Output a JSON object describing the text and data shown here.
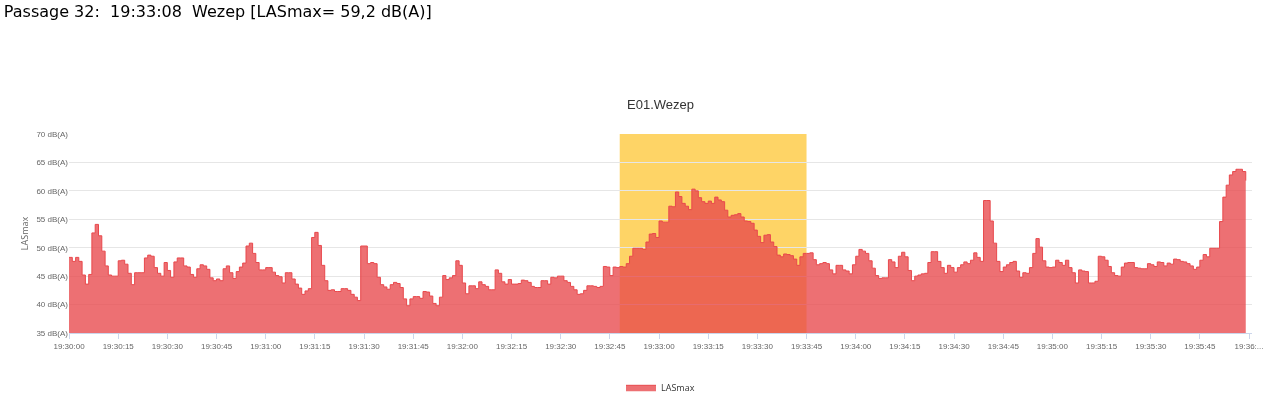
{
  "chart_data": {
    "type": "area",
    "title": "Passage 32:  19:33:08  Wezep [LASmax= 59,2 dB(A)]",
    "subtitle": "E01.Wezep",
    "ylabel": "LASmax",
    "x": [
      19.5,
      19.50028,
      19.50056,
      19.50083,
      19.50111,
      19.50139,
      19.50167,
      19.50194,
      19.50222,
      19.5025,
      19.50278,
      19.50306,
      19.50333,
      19.50361,
      19.50389,
      19.50417,
      19.50444,
      19.50472,
      19.505,
      19.50528,
      19.50556,
      19.50583,
      19.50611,
      19.50639,
      19.50667,
      19.50694,
      19.50722,
      19.5075,
      19.50778,
      19.50806,
      19.50833,
      19.50861,
      19.50889,
      19.50917,
      19.50944,
      19.50972,
      19.51,
      19.51028,
      19.51056,
      19.51083,
      19.51111,
      19.51139,
      19.51167,
      19.51194,
      19.51222,
      19.5125,
      19.51278,
      19.51306,
      19.51333,
      19.51361,
      19.51389,
      19.51417,
      19.51444,
      19.51472,
      19.515,
      19.51528,
      19.51556,
      19.51583,
      19.51611,
      19.51639,
      19.51667,
      19.51694,
      19.51722,
      19.5175,
      19.51778,
      19.51806,
      19.51833,
      19.51861,
      19.51889,
      19.51917,
      19.51944,
      19.51972,
      19.52,
      19.52028,
      19.52056,
      19.52083,
      19.52111,
      19.52139,
      19.52167,
      19.52194,
      19.52222,
      19.5225,
      19.52278,
      19.52306,
      19.52333,
      19.52361,
      19.52389,
      19.52417,
      19.52444,
      19.52472,
      19.525,
      19.52528,
      19.52556,
      19.52583,
      19.52611,
      19.52639,
      19.52667,
      19.52694,
      19.52722,
      19.5275,
      19.52778,
      19.52806,
      19.52833,
      19.52861,
      19.52889,
      19.52917,
      19.52944,
      19.52972,
      19.53,
      19.53028,
      19.53056,
      19.53083,
      19.53111,
      19.53139,
      19.53167,
      19.53194,
      19.53222,
      19.5325,
      19.53278,
      19.53306,
      19.53333,
      19.53361,
      19.53389,
      19.53417,
      19.53444,
      19.53472,
      19.535,
      19.53528,
      19.53556,
      19.53583,
      19.53611,
      19.53639,
      19.53667,
      19.53694,
      19.53722,
      19.5375,
      19.53778,
      19.53806,
      19.53833,
      19.53861,
      19.53889,
      19.53917,
      19.53944,
      19.53972,
      19.54,
      19.54028,
      19.54056,
      19.54083,
      19.54111,
      19.54139,
      19.54167,
      19.54194,
      19.54222,
      19.5425,
      19.54278,
      19.54306,
      19.54333,
      19.54361,
      19.54389,
      19.54417,
      19.54444,
      19.54472,
      19.545,
      19.54528,
      19.54556,
      19.54583,
      19.54611,
      19.54639,
      19.54667,
      19.54694,
      19.54722,
      19.5475,
      19.54778,
      19.54806,
      19.54833,
      19.54861,
      19.54889,
      19.54917,
      19.54944,
      19.54972,
      19.55,
      19.55028,
      19.55056,
      19.55083,
      19.55111,
      19.55139,
      19.55167,
      19.55194,
      19.55222,
      19.5525,
      19.55278,
      19.55306,
      19.55333,
      19.55361,
      19.55389,
      19.55417,
      19.55444,
      19.55472,
      19.555,
      19.55528,
      19.55556,
      19.55583,
      19.55611,
      19.55639,
      19.55667,
      19.55694,
      19.55722,
      19.5575,
      19.55778,
      19.55806,
      19.55833,
      19.55861,
      19.55889,
      19.55917,
      19.55944,
      19.55972,
      19.56,
      19.56028,
      19.56056,
      19.56083,
      19.56111,
      19.56139,
      19.56167,
      19.56194,
      19.56222,
      19.5625,
      19.56278,
      19.56306,
      19.56333,
      19.56361,
      19.56389,
      19.56417,
      19.56444,
      19.56472,
      19.565,
      19.56528,
      19.56556,
      19.56583,
      19.56611,
      19.56639,
      19.56667,
      19.56694,
      19.56722,
      19.5675,
      19.56778,
      19.56806,
      19.56833,
      19.56861,
      19.56889,
      19.56917,
      19.56944,
      19.56972,
      19.57,
      19.57028,
      19.57056,
      19.57083,
      19.57111,
      19.57139,
      19.57167,
      19.57194,
      19.57222,
      19.5725,
      19.57278,
      19.57306,
      19.57333,
      19.57361,
      19.57389,
      19.57417,
      19.57444,
      19.57472,
      19.575,
      19.57528,
      19.57556,
      19.57583,
      19.57611,
      19.57639,
      19.57667,
      19.57694,
      19.57722,
      19.5775,
      19.57778,
      19.57806,
      19.57833,
      19.57861,
      19.57889,
      19.57917,
      19.57944,
      19.57972,
      19.58,
      19.58028,
      19.58056,
      19.58083,
      19.58111,
      19.58139,
      19.58167,
      19.58194,
      19.58222,
      19.5825,
      19.58278,
      19.58306,
      19.58333,
      19.58361,
      19.58389,
      19.58417,
      19.58444,
      19.58472,
      19.585,
      19.58528,
      19.58556,
      19.58583,
      19.58611,
      19.58639,
      19.58667,
      19.58694,
      19.58722,
      19.5875,
      19.58778,
      19.58806,
      19.58833,
      19.58861,
      19.58889,
      19.58917,
      19.58944,
      19.58972,
      19.59,
      19.59028,
      19.59056,
      19.59083,
      19.59111,
      19.59139,
      19.59167,
      19.59194,
      19.59222,
      19.5925,
      19.59278,
      19.59306,
      19.59333,
      19.59361,
      19.59389,
      19.59417,
      19.59444,
      19.59472,
      19.595,
      19.59528,
      19.59556,
      19.59583,
      19.59611,
      19.59639,
      19.59667,
      19.59694,
      19.59722,
      19.5975,
      19.59778,
      19.59806,
      19.59833,
      19.59861,
      19.59889,
      19.59917,
      19.59944,
      19.59972
    ],
    "series": [
      {
        "name": "LASmax",
        "color": "#e8484c",
        "values": [
          48.3,
          47.6,
          48.3,
          47.6,
          45.2,
          43.6,
          45.3,
          52.6,
          54.1,
          52.1,
          49.4,
          46.8,
          45.2,
          45.0,
          45.0,
          47.7,
          47.8,
          47.1,
          45.5,
          43.5,
          45.6,
          45.6,
          45.6,
          48.2,
          48.7,
          48.5,
          46.5,
          45.5,
          45.0,
          47.4,
          46.0,
          44.8,
          47.5,
          48.2,
          48.2,
          46.8,
          46.6,
          45.3,
          44.8,
          46.3,
          47.0,
          46.8,
          46.2,
          44.7,
          44.2,
          44.5,
          44.2,
          46.3,
          46.8,
          45.6,
          44.6,
          45.8,
          46.6,
          47.3,
          50.3,
          50.8,
          49.0,
          47.4,
          46.1,
          46.1,
          46.5,
          46.5,
          45.7,
          45.1,
          44.9,
          43.8,
          45.6,
          45.6,
          44.5,
          43.6,
          42.9,
          41.8,
          42.4,
          42.8,
          51.8,
          52.7,
          50.4,
          46.9,
          44.2,
          42.5,
          42.6,
          42.3,
          42.3,
          42.8,
          42.8,
          42.5,
          41.8,
          41.3,
          40.7,
          50.3,
          50.3,
          47.2,
          47.4,
          47.2,
          44.8,
          43.5,
          43.1,
          42.7,
          43.5,
          43.9,
          43.7,
          43.0,
          41.0,
          39.8,
          41.0,
          41.4,
          41.4,
          41.1,
          42.3,
          42.2,
          41.5,
          40.2,
          39.8,
          41.3,
          45.1,
          44.4,
          44.7,
          45.1,
          47.7,
          46.9,
          43.8,
          41.9,
          43.3,
          43.3,
          42.8,
          44.0,
          43.5,
          43.2,
          42.6,
          42.6,
          46.1,
          45.5,
          44.0,
          43.6,
          44.4,
          43.6,
          43.6,
          43.7,
          44.3,
          44.2,
          43.9,
          43.2,
          43.0,
          43.0,
          44.2,
          44.2,
          43.6,
          44.8,
          44.7,
          45.0,
          45.0,
          44.2,
          43.9,
          43.2,
          42.6,
          41.8,
          41.9,
          42.5,
          43.3,
          43.3,
          43.2,
          43.0,
          43.2,
          46.7,
          46.6,
          45.1,
          46.6,
          46.5,
          46.7,
          46.6,
          47.2,
          48.5,
          49.9,
          49.9,
          49.9,
          49.7,
          51.0,
          52.4,
          52.5,
          51.8,
          54.7,
          54.5,
          54.5,
          57.3,
          57.2,
          59.8,
          59.0,
          57.8,
          57.3,
          56.7,
          60.3,
          60.0,
          58.8,
          58.1,
          57.8,
          58.2,
          57.8,
          58.9,
          58.4,
          58.1,
          56.6,
          55.4,
          55.7,
          55.8,
          56.0,
          55.4,
          54.7,
          54.6,
          54.3,
          53.1,
          52.0,
          50.9,
          52.2,
          52.3,
          51.0,
          50.2,
          48.7,
          48.4,
          48.9,
          48.8,
          48.6,
          48.0,
          46.9,
          48.4,
          49.0,
          49.0,
          49.1,
          47.9,
          47.0,
          47.2,
          47.4,
          47.2,
          46.1,
          45.4,
          46.9,
          46.9,
          46.1,
          45.9,
          45.4,
          47.0,
          48.5,
          49.7,
          49.4,
          49.0,
          47.7,
          46.4,
          45.1,
          44.6,
          44.7,
          44.7,
          47.9,
          47.5,
          46.5,
          48.5,
          49.2,
          48.4,
          46.0,
          44.2,
          45.0,
          45.2,
          45.4,
          45.5,
          47.4,
          49.3,
          49.3,
          47.6,
          46.5,
          45.5,
          46.9,
          46.5,
          45.7,
          46.5,
          47.0,
          47.5,
          47.2,
          47.8,
          49.1,
          48.3,
          47.6,
          58.3,
          58.3,
          54.7,
          50.8,
          47.6,
          45.8,
          46.6,
          47.0,
          47.4,
          47.6,
          45.9,
          44.8,
          45.6,
          45.5,
          46.5,
          49.0,
          51.6,
          50.1,
          47.7,
          46.6,
          46.5,
          46.6,
          47.8,
          47.4,
          46.9,
          47.8,
          46.5,
          45.6,
          43.8,
          46.1,
          45.9,
          45.8,
          43.8,
          43.8,
          44.1,
          48.5,
          48.4,
          47.8,
          46.7,
          45.6,
          45.1,
          45.0,
          46.6,
          47.3,
          47.4,
          47.4,
          46.5,
          46.4,
          46.3,
          46.3,
          47.2,
          47.0,
          46.7,
          47.5,
          47.4,
          46.8,
          47.3,
          47.1,
          48.0,
          47.9,
          47.6,
          47.5,
          47.2,
          46.8,
          46.2,
          46.6,
          47.8,
          48.8,
          48.4,
          49.9,
          49.9,
          49.9,
          54.6,
          58.9,
          61.0,
          62.8,
          63.4,
          63.8,
          63.8,
          63.4,
          61.8
        ]
      }
    ],
    "xlim": [
      19.5,
      19.60025
    ],
    "xticks": [
      {
        "value": 19.5,
        "label": "19:30:00"
      },
      {
        "value": 19.50417,
        "label": "19:30:15"
      },
      {
        "value": 19.50833,
        "label": "19:30:30"
      },
      {
        "value": 19.5125,
        "label": "19:30:45"
      },
      {
        "value": 19.51667,
        "label": "19:31:00"
      },
      {
        "value": 19.52083,
        "label": "19:31:15"
      },
      {
        "value": 19.525,
        "label": "19:31:30"
      },
      {
        "value": 19.52917,
        "label": "19:31:45"
      },
      {
        "value": 19.53333,
        "label": "19:32:00"
      },
      {
        "value": 19.5375,
        "label": "19:32:15"
      },
      {
        "value": 19.54167,
        "label": "19:32:30"
      },
      {
        "value": 19.54583,
        "label": "19:32:45"
      },
      {
        "value": 19.55,
        "label": "19:33:00"
      },
      {
        "value": 19.55417,
        "label": "19:33:15"
      },
      {
        "value": 19.55833,
        "label": "19:33:30"
      },
      {
        "value": 19.5625,
        "label": "19:33:45"
      },
      {
        "value": 19.56667,
        "label": "19:34:00"
      },
      {
        "value": 19.57083,
        "label": "19:34:15"
      },
      {
        "value": 19.575,
        "label": "19:34:30"
      },
      {
        "value": 19.57917,
        "label": "19:34:45"
      },
      {
        "value": 19.58333,
        "label": "19:35:00"
      },
      {
        "value": 19.5875,
        "label": "19:35:15"
      },
      {
        "value": 19.59167,
        "label": "19:35:30"
      },
      {
        "value": 19.59583,
        "label": "19:35:45"
      },
      {
        "value": 19.6,
        "label": "19:36:..."
      }
    ],
    "ylim": [
      35,
      70
    ],
    "yticks": [
      {
        "value": 35,
        "label": "35 dB(A)"
      },
      {
        "value": 40,
        "label": "40 dB(A)"
      },
      {
        "value": 45,
        "label": "45 dB(A)"
      },
      {
        "value": 50,
        "label": "50 dB(A)"
      },
      {
        "value": 55,
        "label": "55 dB(A)"
      },
      {
        "value": 60,
        "label": "60 dB(A)"
      },
      {
        "value": 65,
        "label": "65 dB(A)"
      },
      {
        "value": 70,
        "label": "70 dB(A)"
      }
    ],
    "bands": [
      {
        "axis": "x",
        "from": 19.54667,
        "to": 19.5625,
        "color": "#fed466"
      }
    ],
    "grid": "y",
    "legend": "bottom"
  }
}
